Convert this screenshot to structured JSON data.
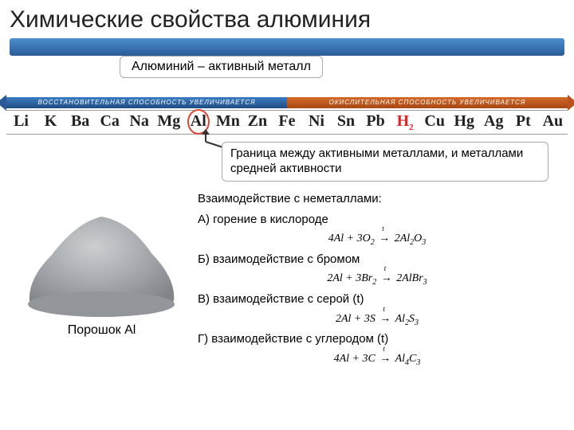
{
  "title": "Химические свойства алюминия",
  "subtitle": "Алюминий – активный металл",
  "activity_series": {
    "left_arrow_label": "ВОССТАНОВИТЕЛЬНАЯ СПОСОБНОСТЬ УВЕЛИЧИВАЕТСЯ",
    "right_arrow_label": "ОКИСЛИТЕЛЬНАЯ СПОСОБНОСТЬ УВЕЛИЧИВАЕТСЯ",
    "elements": [
      "Li",
      "K",
      "Ba",
      "Ca",
      "Na",
      "Mg",
      "Al",
      "Mn",
      "Zn",
      "Fe",
      "Ni",
      "Sn",
      "Pb",
      "H",
      "Cu",
      "Hg",
      "Ag",
      "Pt",
      "Au"
    ],
    "highlight": "Al",
    "hydrogen": "H",
    "hydrogen_sub": "2",
    "colors": {
      "left_arrow": "#2a5a95",
      "right_arrow": "#b8531e",
      "highlight_circle": "#d43",
      "hydrogen_text": "#d22"
    }
  },
  "border_note": "Граница между активными металлами, и металлами средней активности",
  "powder_label": "Порошок Al",
  "powder_color": "#9ca0a4",
  "reactions": {
    "heading": "Взаимодействие с неметаллами:",
    "items": [
      {
        "label": "А) горение в кислороде",
        "equation_html": "4<i>Al</i> + 3<i>O</i><sub>2</sub> <span class='eq-arrow'><span class='t'>t</span></span> 2<i>Al</i><sub>2</sub><i>O</i><sub>3</sub>"
      },
      {
        "label": "Б) взаимодействие с бромом",
        "equation_html": "2<i>Al</i> + 3<i>Br</i><sub>2</sub> <span class='eq-arrow'><span class='t'>t</span></span> 2<i>AlBr</i><sub>3</sub>"
      },
      {
        "label": "В) взаимодействие с серой (t)",
        "equation_html": "2<i>Al</i> + 3<i>S</i> <span class='eq-arrow'><span class='t'>t</span></span> <i>Al</i><sub>2</sub><i>S</i><sub>3</sub>"
      },
      {
        "label": "Г) взаимодействие с углеродом (t)",
        "equation_html": "4<i>Al</i> + 3<i>C</i> <span class='eq-arrow'><span class='t'>t</span></span> <i>Al</i><sub>4</sub><i>C</i><sub>3</sub>"
      }
    ]
  }
}
